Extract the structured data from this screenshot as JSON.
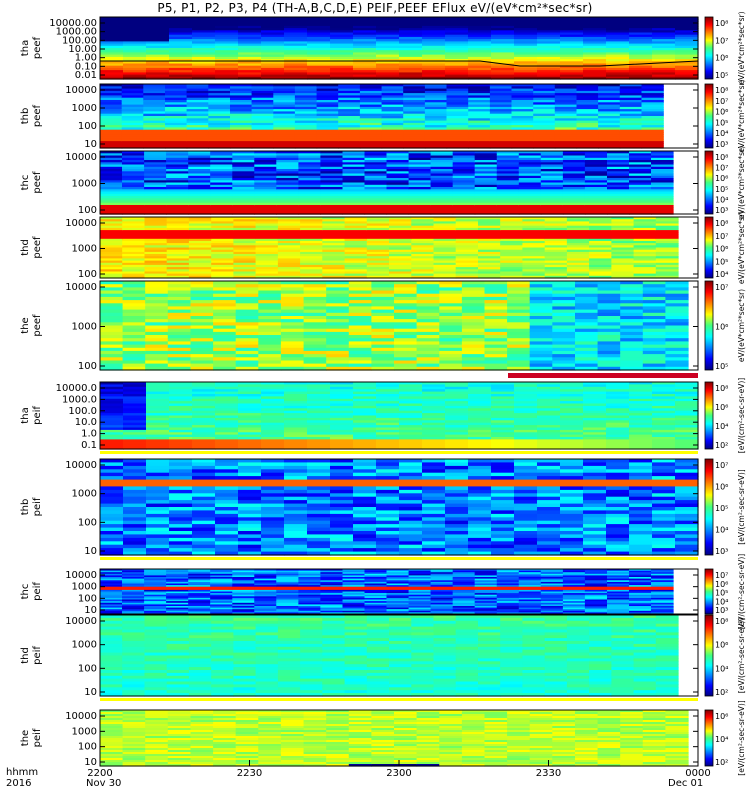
{
  "title": "P5, P1, P2, P3, P4 (TH-A,B,C,D,E) PEIF,PEEF EFlux eV/(eV*cm²*sec*sr)",
  "footer": {
    "row1": "hhmm",
    "row2": "2016",
    "date_start": "Nov 30",
    "date_end": "Dec 01"
  },
  "chart_data": {
    "type": "heatmap",
    "x_ticks": [
      "2200",
      "2230",
      "2300",
      "2330",
      "0000"
    ],
    "x_range": [
      "2200",
      "0000"
    ],
    "panels": [
      {
        "probe": "tha",
        "species": "peef",
        "label": [
          "tha",
          "peef"
        ],
        "yscale": "log",
        "yticks": [
          "10000.00",
          "1000.00",
          "100.00",
          "10.00",
          "1.00",
          "0.10",
          "0.01"
        ],
        "cbar_ticks": [
          "10⁸",
          "10⁷",
          "10⁶",
          "10⁵"
        ],
        "cbar_label": "eV/(eV*cm²*sec*sr)",
        "data_end": "0000",
        "pattern": "peef-hot"
      },
      {
        "probe": "thb",
        "species": "peef",
        "label": [
          "thb",
          "peef"
        ],
        "yscale": "log",
        "yticks": [
          "10000",
          "1000",
          "100",
          "10"
        ],
        "cbar_ticks": [
          "10⁸",
          "10⁷",
          "10⁶",
          "10⁵",
          "10⁴",
          "10³"
        ],
        "cbar_label": "eV/(eV*cm²*sec*sr)",
        "data_end": "2353",
        "pattern": "peef-banded"
      },
      {
        "probe": "thc",
        "species": "peef",
        "label": [
          "thc",
          "peef"
        ],
        "yscale": "log",
        "yticks": [
          "10000",
          "1000",
          "100"
        ],
        "cbar_ticks": [
          "10⁸",
          "10⁷",
          "10⁶",
          "10⁵",
          "10⁴",
          "10³"
        ],
        "cbar_label": "eV/(eV*cm²*sec*sr)",
        "data_end": "2355",
        "pattern": "peef-dark"
      },
      {
        "probe": "thd",
        "species": "peef",
        "label": [
          "thd",
          "peef"
        ],
        "yscale": "log",
        "yticks": [
          "10000",
          "1000",
          "100"
        ],
        "cbar_ticks": [
          "10⁸",
          "10⁷",
          "10⁶",
          "10⁵",
          "10⁴"
        ],
        "cbar_label": "eV/(eV*cm²*sec*sr)",
        "data_end": "2356",
        "pattern": "peef-warm"
      },
      {
        "probe": "the",
        "species": "peef",
        "label": [
          "the",
          "peef"
        ],
        "yscale": "log",
        "yticks": [
          "10000",
          "1000",
          "100"
        ],
        "cbar_ticks": [
          "10⁷",
          "10⁶",
          "10⁵"
        ],
        "cbar_label": "eV/(eV*cm²*sec*sr)",
        "data_end": "2358",
        "pattern": "peef-mixed"
      },
      {
        "probe": "tha",
        "species": "peif",
        "label": [
          "tha",
          "peif"
        ],
        "yscale": "log",
        "yticks": [
          "10000.0",
          "1000.0",
          "100.0",
          "10.0",
          "1.0",
          "0.1"
        ],
        "cbar_ticks": [
          "10⁸",
          "10⁶",
          "10⁴",
          "10²"
        ],
        "cbar_label": "[eV/(cm²-sec-sr-eV)]",
        "data_end": "0000",
        "pattern": "peif-a"
      },
      {
        "probe": "thb",
        "species": "peif",
        "label": [
          "thb",
          "peif"
        ],
        "yscale": "log",
        "yticks": [
          "10000",
          "1000",
          "100",
          "10"
        ],
        "cbar_ticks": [
          "10⁷",
          "10⁶",
          "10⁵",
          "10⁴",
          "10³"
        ],
        "cbar_label": "[eV/(cm²-sec-sr-eV)]",
        "data_end": "0000",
        "pattern": "peif-blue"
      },
      {
        "probe": "thc",
        "species": "peif",
        "label": [
          "thc",
          "peif"
        ],
        "yscale": "log",
        "yticks": [
          "10000",
          "1000",
          "100",
          "10"
        ],
        "cbar_ticks": [
          "10⁷",
          "10⁶",
          "10⁵",
          "10⁴",
          "10³"
        ],
        "cbar_label": "[eV/(cm²-sec-sr-eV)]",
        "data_end": "2355",
        "pattern": "peif-blue2"
      },
      {
        "probe": "thd",
        "species": "peif",
        "label": [
          "thd",
          "peif"
        ],
        "yscale": "log",
        "yticks": [
          "10000",
          "1000",
          "100",
          "10"
        ],
        "cbar_ticks": [
          "10⁸",
          "10⁶",
          "10⁴",
          "10²"
        ],
        "cbar_label": "[eV/(cm²-sec-sr-eV)]",
        "data_end": "2356",
        "pattern": "peif-cyan"
      },
      {
        "probe": "the",
        "species": "peif",
        "label": [
          "the",
          "peif"
        ],
        "yscale": "log",
        "yticks": [
          "10000",
          "1000",
          "100",
          "10"
        ],
        "cbar_ticks": [
          "10⁶",
          "10⁴",
          "10²"
        ],
        "cbar_label": "[eV/(cm²-sec-sr-eV)]",
        "data_end": "2358",
        "pattern": "peif-yellow"
      }
    ],
    "colors": {
      "colormap": [
        "#000080",
        "#0000ff",
        "#0080ff",
        "#00ffff",
        "#40ff80",
        "#ffff00",
        "#ff8000",
        "#ff0000",
        "#800000"
      ],
      "flag_bar": "#cc0022",
      "sep_bar": "#ffff00"
    }
  }
}
